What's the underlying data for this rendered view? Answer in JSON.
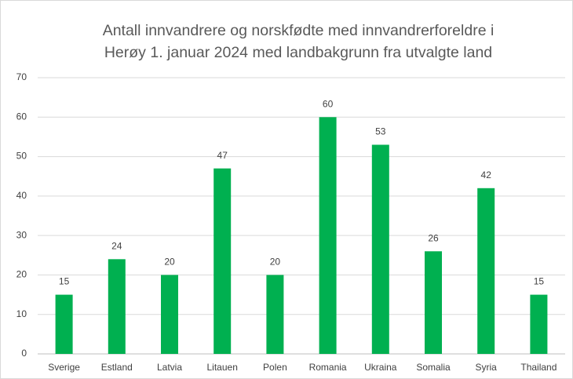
{
  "chart_data": {
    "type": "bar",
    "title": [
      "Antall innvandrere og norskfødte med innvandrerforeldre i",
      "Herøy 1. januar 2024 med landbakgrunn fra utvalgte land"
    ],
    "categories": [
      "Sverige",
      "Estland",
      "Latvia",
      "Litauen",
      "Polen",
      "Romania",
      "Ukraina",
      "Somalia",
      "Syria",
      "Thailand"
    ],
    "values": [
      15,
      24,
      20,
      47,
      20,
      60,
      53,
      26,
      42,
      15
    ],
    "color": "#00b050",
    "ylim": [
      0,
      70
    ],
    "yticks": [
      0,
      10,
      20,
      30,
      40,
      50,
      60,
      70
    ],
    "grid": true
  }
}
